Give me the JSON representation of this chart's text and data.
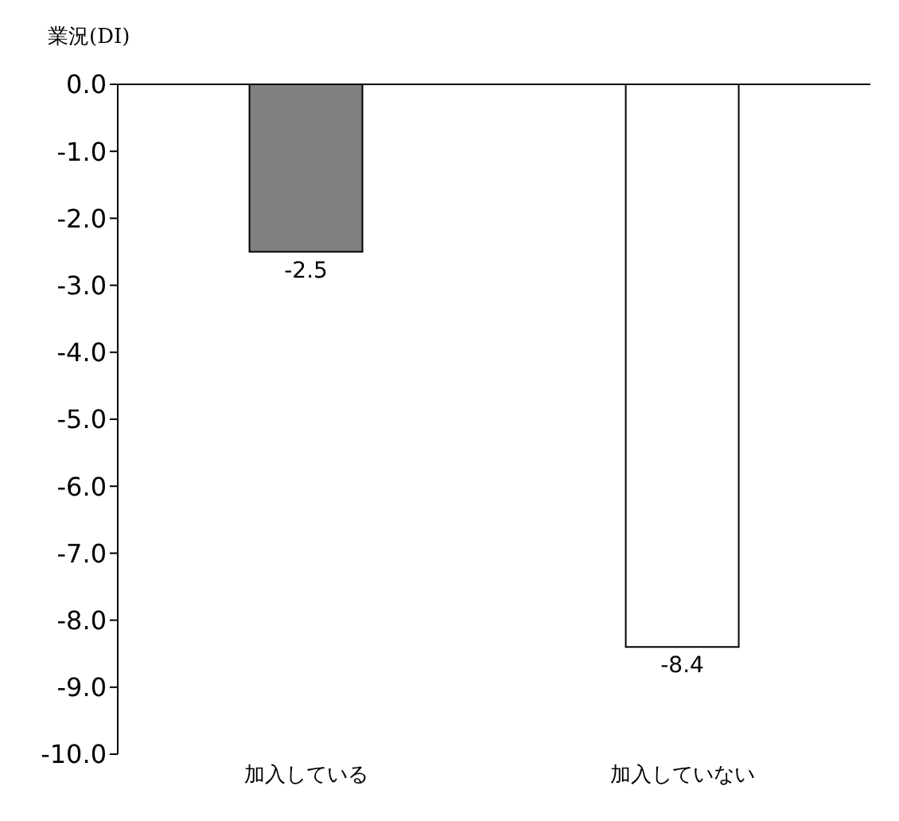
{
  "chart_data": {
    "type": "bar",
    "ylabel": "業況(DI)",
    "categories": [
      "加入している",
      "加入していない"
    ],
    "values": [
      -2.5,
      -8.4
    ],
    "colors": [
      "#808080",
      "#ffffff"
    ],
    "ylim": [
      -10,
      0
    ],
    "yticks": [
      {
        "value": 0,
        "label": "0.0"
      },
      {
        "value": -1,
        "label": "-1.0"
      },
      {
        "value": -2,
        "label": "-2.0"
      },
      {
        "value": -3,
        "label": "-3.0"
      },
      {
        "value": -4,
        "label": "-4.0"
      },
      {
        "value": -5,
        "label": "-5.0"
      },
      {
        "value": -6,
        "label": "-6.0"
      },
      {
        "value": -7,
        "label": "-7.0"
      },
      {
        "value": -8,
        "label": "-8.0"
      },
      {
        "value": -9,
        "label": "-9.0"
      },
      {
        "value": -10,
        "label": "-10.0"
      }
    ],
    "data_labels": true,
    "grid": false,
    "legend": false
  }
}
